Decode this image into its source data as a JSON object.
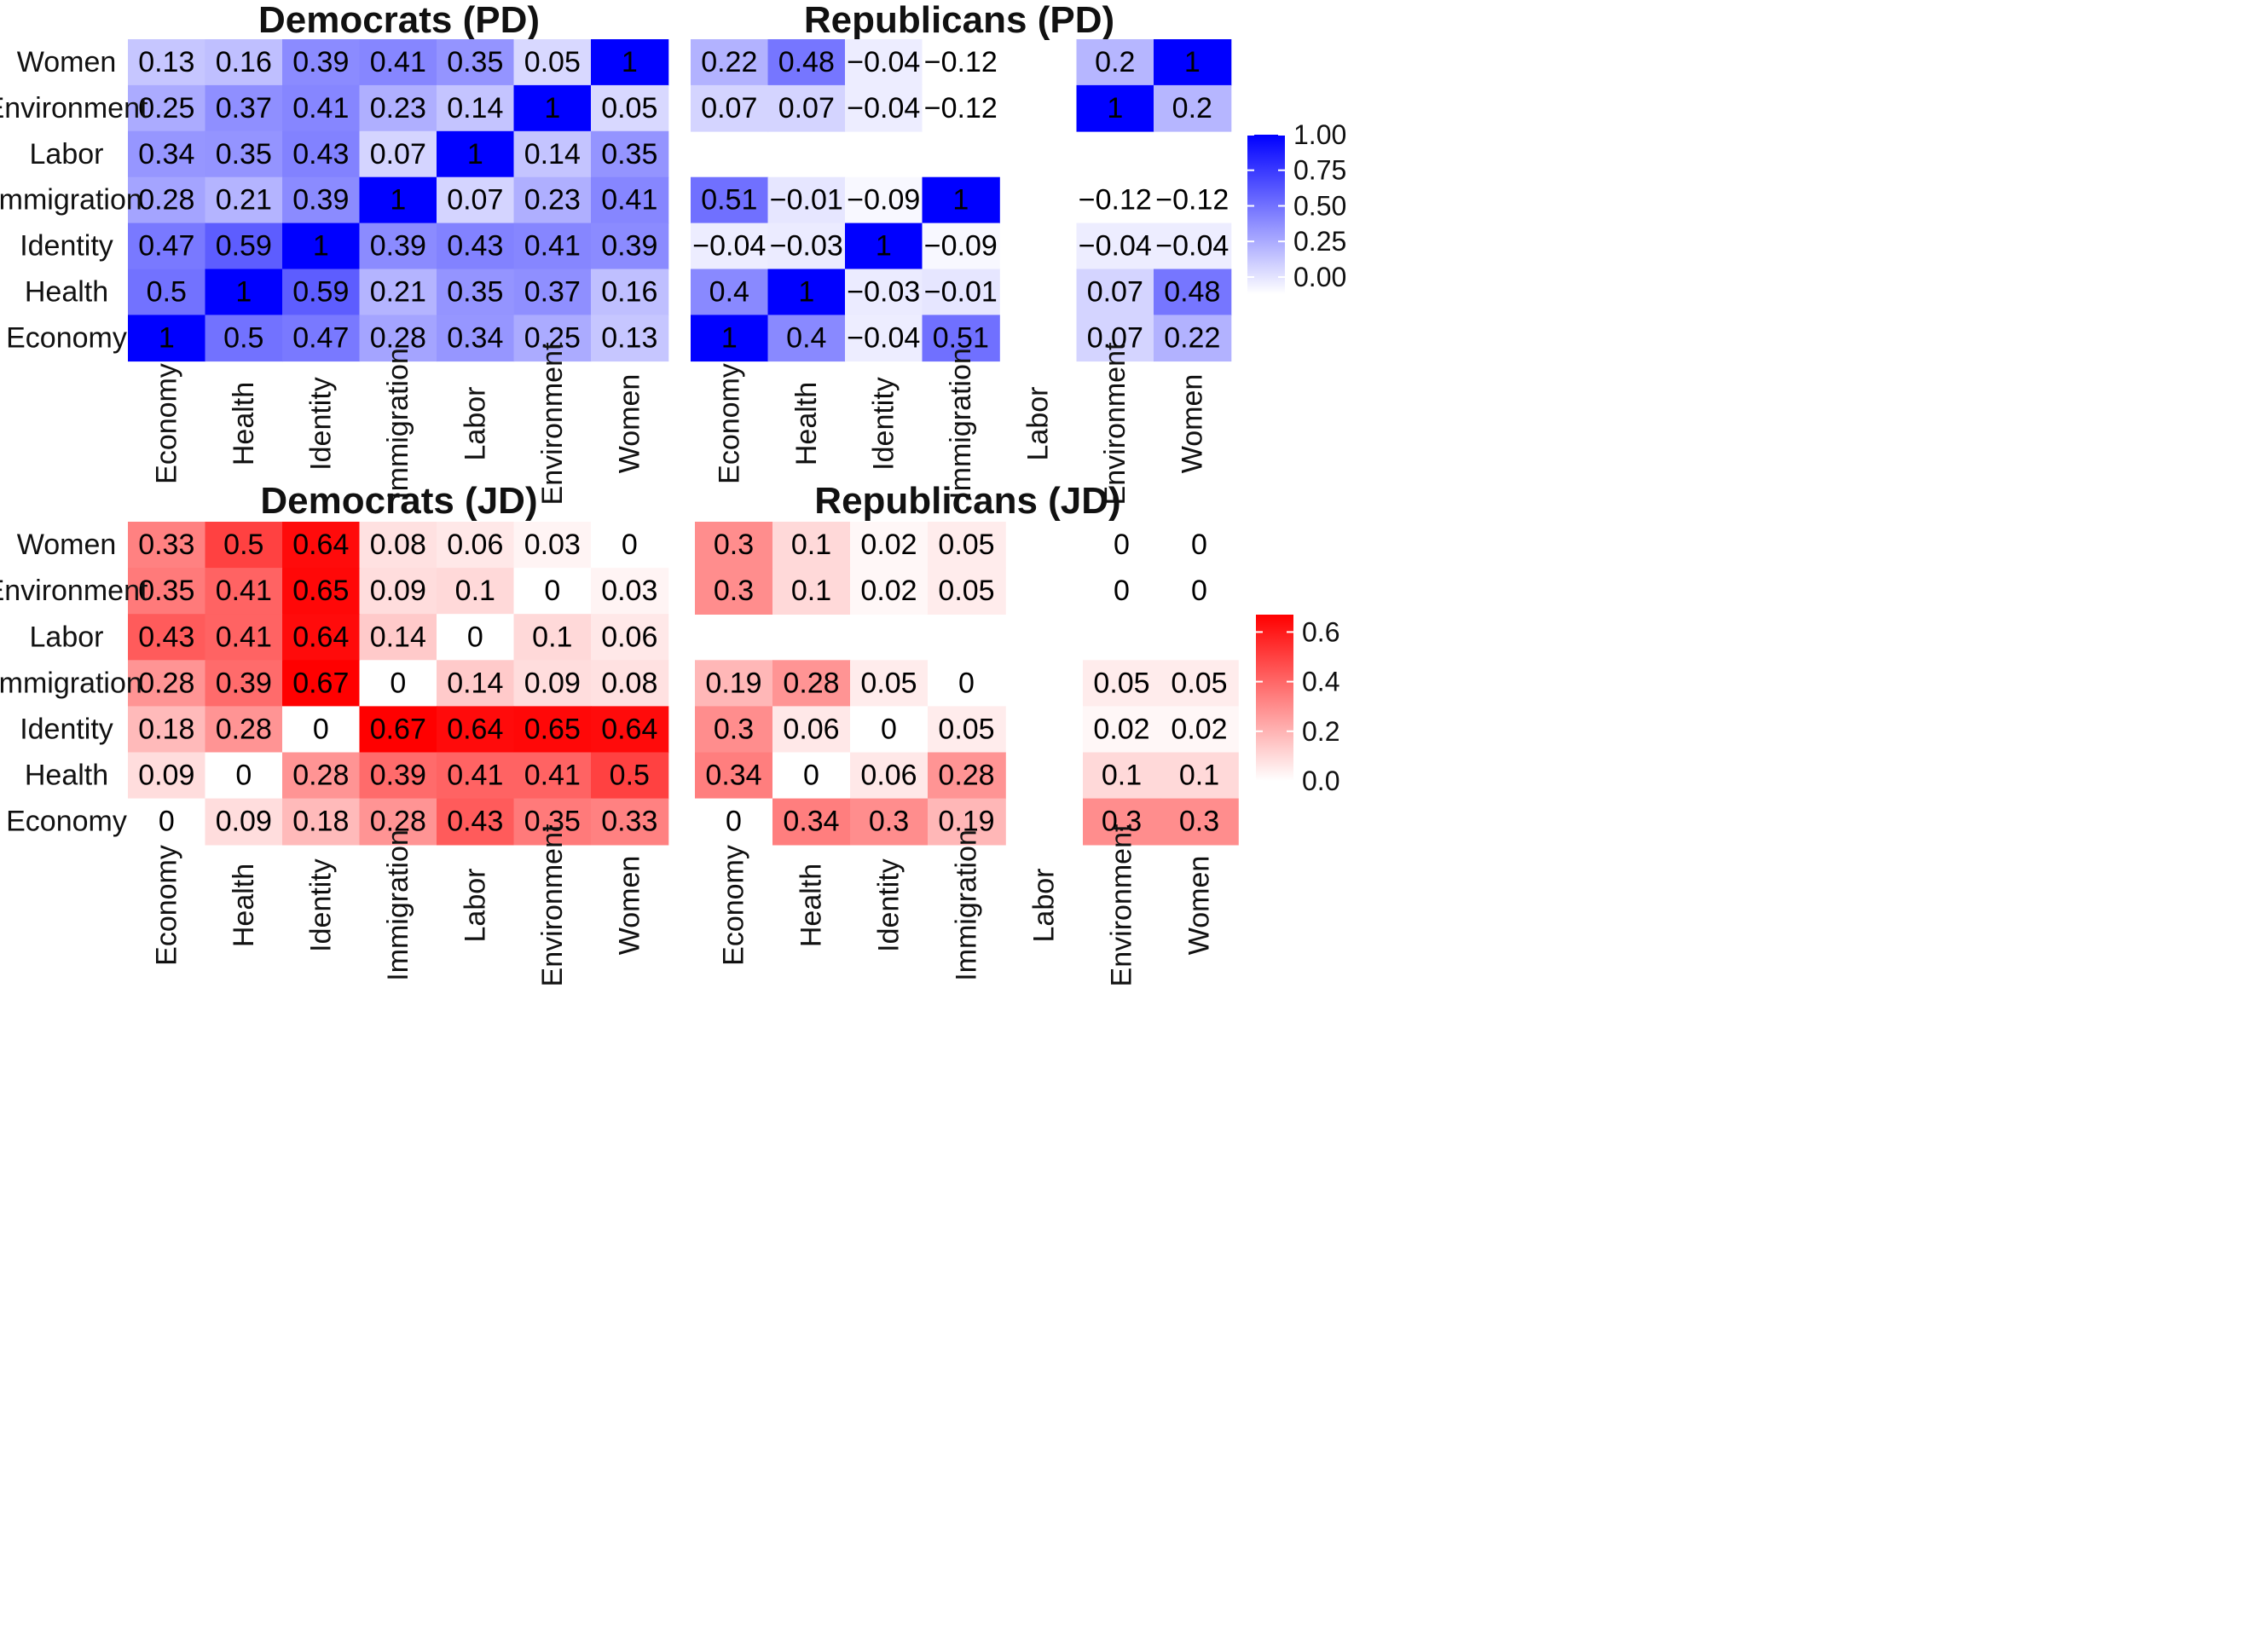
{
  "chart_data": [
    {
      "type": "heatmap",
      "id": "dem_pd",
      "title": "Democrats (PD)",
      "scale": "blue",
      "categories": [
        "Economy",
        "Health",
        "Identity",
        "Immigration",
        "Labor",
        "Environment",
        "Women"
      ],
      "row_labels": [
        "Women",
        "Environment",
        "Labor",
        "Immigration",
        "Identity",
        "Health",
        "Economy"
      ],
      "col_labels": [
        "Economy",
        "Health",
        "Identity",
        "Immigration",
        "Labor",
        "Environment",
        "Women"
      ],
      "values": [
        [
          0.13,
          0.16,
          0.39,
          0.41,
          0.35,
          0.05,
          1
        ],
        [
          0.25,
          0.37,
          0.41,
          0.23,
          0.14,
          1,
          0.05
        ],
        [
          0.34,
          0.35,
          0.43,
          0.07,
          1,
          0.14,
          0.35
        ],
        [
          0.28,
          0.21,
          0.39,
          1,
          0.07,
          0.23,
          0.41
        ],
        [
          0.47,
          0.59,
          1,
          0.39,
          0.43,
          0.41,
          0.39
        ],
        [
          0.5,
          1,
          0.59,
          0.21,
          0.35,
          0.37,
          0.16
        ],
        [
          1,
          0.5,
          0.47,
          0.28,
          0.34,
          0.25,
          0.13
        ]
      ],
      "labels": [
        [
          "0.13",
          "0.16",
          "0.39",
          "0.41",
          "0.35",
          "0.05",
          "1"
        ],
        [
          "0.25",
          "0.37",
          "0.41",
          "0.23",
          "0.14",
          "1",
          "0.05"
        ],
        [
          "0.34",
          "0.35",
          "0.43",
          "0.07",
          "1",
          "0.14",
          "0.35"
        ],
        [
          "0.28",
          "0.21",
          "0.39",
          "1",
          "0.07",
          "0.23",
          "0.41"
        ],
        [
          "0.47",
          "0.59",
          "1",
          "0.39",
          "0.43",
          "0.41",
          "0.39"
        ],
        [
          "0.5",
          "1",
          "0.59",
          "0.21",
          "0.35",
          "0.37",
          "0.16"
        ],
        [
          "1",
          "0.5",
          "0.47",
          "0.28",
          "0.34",
          "0.25",
          "0.13"
        ]
      ]
    },
    {
      "type": "heatmap",
      "id": "rep_pd",
      "title": "Republicans (PD)",
      "scale": "blue",
      "categories": [
        "Economy",
        "Health",
        "Identity",
        "Immigration",
        "Labor",
        "Environment",
        "Women"
      ],
      "row_labels": [
        "Women",
        "Environment",
        "Labor",
        "Immigration",
        "Identity",
        "Health",
        "Economy"
      ],
      "col_labels": [
        "Economy",
        "Health",
        "Identity",
        "Immigration",
        "Labor",
        "Environment",
        "Women"
      ],
      "values": [
        [
          0.22,
          0.48,
          -0.04,
          -0.12,
          null,
          0.2,
          1
        ],
        [
          0.07,
          0.07,
          -0.04,
          -0.12,
          null,
          1,
          0.2
        ],
        [
          null,
          null,
          null,
          null,
          null,
          null,
          null
        ],
        [
          0.51,
          -0.01,
          -0.09,
          1,
          null,
          -0.12,
          -0.12
        ],
        [
          -0.04,
          -0.03,
          1,
          -0.09,
          null,
          -0.04,
          -0.04
        ],
        [
          0.4,
          1,
          -0.03,
          -0.01,
          null,
          0.07,
          0.48
        ],
        [
          1,
          0.4,
          -0.04,
          0.51,
          null,
          0.07,
          0.22
        ]
      ],
      "labels": [
        [
          "0.22",
          "0.48",
          "−0.04",
          "−0.12",
          "",
          "0.2",
          "1"
        ],
        [
          "0.07",
          "0.07",
          "−0.04",
          "−0.12",
          "",
          "1",
          "0.2"
        ],
        [
          "",
          "",
          "",
          "",
          "",
          "",
          ""
        ],
        [
          "0.51",
          "−0.01",
          "−0.09",
          "1",
          "",
          "−0.12",
          "−0.12"
        ],
        [
          "−0.04",
          "−0.03",
          "1",
          "−0.09",
          "",
          "−0.04",
          "−0.04"
        ],
        [
          "0.4",
          "1",
          "−0.03",
          "−0.01",
          "",
          "0.07",
          "0.48"
        ],
        [
          "1",
          "0.4",
          "−0.04",
          "0.51",
          "",
          "0.07",
          "0.22"
        ]
      ]
    },
    {
      "type": "heatmap",
      "id": "dem_jd",
      "title": "Democrats (JD)",
      "scale": "red",
      "categories": [
        "Economy",
        "Health",
        "Identity",
        "Immigration",
        "Labor",
        "Environment",
        "Women"
      ],
      "row_labels": [
        "Women",
        "Environment",
        "Labor",
        "Immigration",
        "Identity",
        "Health",
        "Economy"
      ],
      "col_labels": [
        "Economy",
        "Health",
        "Identity",
        "Immigration",
        "Labor",
        "Environment",
        "Women"
      ],
      "values": [
        [
          0.33,
          0.5,
          0.64,
          0.08,
          0.06,
          0.03,
          0
        ],
        [
          0.35,
          0.41,
          0.65,
          0.09,
          0.1,
          0,
          0.03
        ],
        [
          0.43,
          0.41,
          0.64,
          0.14,
          0,
          0.1,
          0.06
        ],
        [
          0.28,
          0.39,
          0.67,
          0,
          0.14,
          0.09,
          0.08
        ],
        [
          0.18,
          0.28,
          0,
          0.67,
          0.64,
          0.65,
          0.64
        ],
        [
          0.09,
          0,
          0.28,
          0.39,
          0.41,
          0.41,
          0.5
        ],
        [
          0,
          0.09,
          0.18,
          0.28,
          0.43,
          0.35,
          0.33
        ]
      ],
      "labels": [
        [
          "0.33",
          "0.5",
          "0.64",
          "0.08",
          "0.06",
          "0.03",
          "0"
        ],
        [
          "0.35",
          "0.41",
          "0.65",
          "0.09",
          "0.1",
          "0",
          "0.03"
        ],
        [
          "0.43",
          "0.41",
          "0.64",
          "0.14",
          "0",
          "0.1",
          "0.06"
        ],
        [
          "0.28",
          "0.39",
          "0.67",
          "0",
          "0.14",
          "0.09",
          "0.08"
        ],
        [
          "0.18",
          "0.28",
          "0",
          "0.67",
          "0.64",
          "0.65",
          "0.64"
        ],
        [
          "0.09",
          "0",
          "0.28",
          "0.39",
          "0.41",
          "0.41",
          "0.5"
        ],
        [
          "0",
          "0.09",
          "0.18",
          "0.28",
          "0.43",
          "0.35",
          "0.33"
        ]
      ]
    },
    {
      "type": "heatmap",
      "id": "rep_jd",
      "title": "Republicans (JD)",
      "scale": "red",
      "categories": [
        "Economy",
        "Health",
        "Identity",
        "Immigration",
        "Labor",
        "Environment",
        "Women"
      ],
      "row_labels": [
        "Women",
        "Environment",
        "Labor",
        "Immigration",
        "Identity",
        "Health",
        "Economy"
      ],
      "col_labels": [
        "Economy",
        "Health",
        "Identity",
        "Immigration",
        "Labor",
        "Environment",
        "Women"
      ],
      "values": [
        [
          0.3,
          0.1,
          0.02,
          0.05,
          null,
          0,
          0
        ],
        [
          0.3,
          0.1,
          0.02,
          0.05,
          null,
          0,
          0
        ],
        [
          null,
          null,
          null,
          null,
          null,
          null,
          null
        ],
        [
          0.19,
          0.28,
          0.05,
          0,
          null,
          0.05,
          0.05
        ],
        [
          0.3,
          0.06,
          0,
          0.05,
          null,
          0.02,
          0.02
        ],
        [
          0.34,
          0,
          0.06,
          0.28,
          null,
          0.1,
          0.1
        ],
        [
          0,
          0.34,
          0.3,
          0.19,
          null,
          0.3,
          0.3
        ]
      ],
      "labels": [
        [
          "0.3",
          "0.1",
          "0.02",
          "0.05",
          "",
          "0",
          "0"
        ],
        [
          "0.3",
          "0.1",
          "0.02",
          "0.05",
          "",
          "0",
          "0"
        ],
        [
          "",
          "",
          "",
          "",
          "",
          "",
          ""
        ],
        [
          "0.19",
          "0.28",
          "0.05",
          "0",
          "",
          "0.05",
          "0.05"
        ],
        [
          "0.3",
          "0.06",
          "0",
          "0.05",
          "",
          "0.02",
          "0.02"
        ],
        [
          "0.34",
          "0",
          "0.06",
          "0.28",
          "",
          "0.1",
          "0.1"
        ],
        [
          "0",
          "0.34",
          "0.3",
          "0.19",
          "",
          "0.3",
          "0.3"
        ]
      ]
    }
  ],
  "colorbars": {
    "blue": {
      "min": -0.12,
      "max": 1.0,
      "color": "#0000ff",
      "ticks": [
        1.0,
        0.75,
        0.5,
        0.25,
        0.0
      ],
      "tick_labels": [
        "1.00",
        "0.75",
        "0.50",
        "0.25",
        "0.00"
      ]
    },
    "red": {
      "min": 0.0,
      "max": 0.67,
      "color": "#ff0000",
      "ticks": [
        0.6,
        0.4,
        0.2,
        0.0
      ],
      "tick_labels": [
        "0.6",
        "0.4",
        "0.2",
        "0.0"
      ]
    }
  }
}
